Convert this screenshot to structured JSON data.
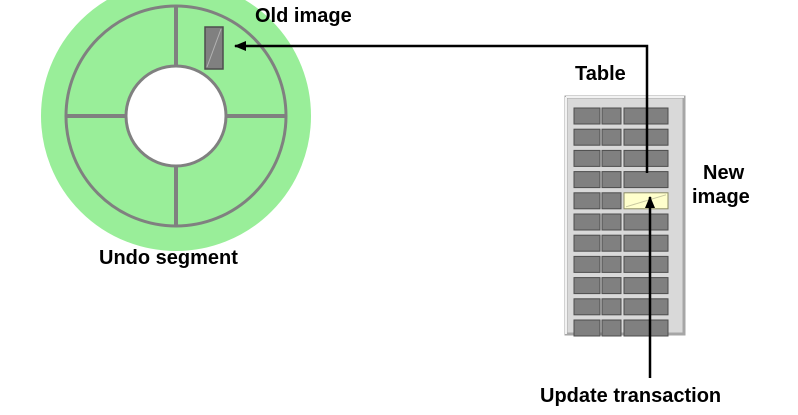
{
  "labels": {
    "old_image": "Old image",
    "table": "Table",
    "new_image_line1": "New",
    "new_image_line2": "image",
    "undo_segment": "Undo segment",
    "update_transaction": "Update transaction"
  },
  "colors": {
    "undo_fill": "#99ee99",
    "undo_stroke": "#808080",
    "table_bg": "#d9d9d9",
    "table_border": "#a6a6a6",
    "cell_fill": "#808080",
    "cell_stroke": "#4d4d4d",
    "new_image_fill": "#ffffcc",
    "old_image_fill": "#808080"
  },
  "table": {
    "rows": 11,
    "columns": 3,
    "new_image_row": 4,
    "new_image_column": 2
  }
}
